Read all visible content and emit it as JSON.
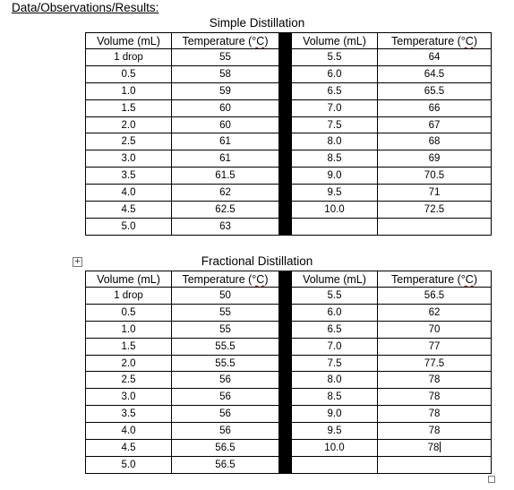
{
  "heading": "Data/Observations/Results:",
  "tables": [
    {
      "caption": "Simple Distillation",
      "header": [
        "Volume (mL)",
        "Temperature (",
        "°C",
        ")",
        "Volume (mL)",
        "Temperature (",
        "°C",
        ")"
      ],
      "rows": [
        [
          "1 drop",
          "55",
          "5.5",
          "64"
        ],
        [
          "0.5",
          "58",
          "6.0",
          "64.5"
        ],
        [
          "1.0",
          "59",
          "6.5",
          "65.5"
        ],
        [
          "1.5",
          "60",
          "7.0",
          "66"
        ],
        [
          "2.0",
          "60",
          "7.5",
          "67"
        ],
        [
          "2.5",
          "61",
          "8.0",
          "68"
        ],
        [
          "3.0",
          "61",
          "8.5",
          "69"
        ],
        [
          "3.5",
          "61.5",
          "9.0",
          "70.5"
        ],
        [
          "4.0",
          "62",
          "9.5",
          "71"
        ],
        [
          "4.5",
          "62.5",
          "10.0",
          "72.5"
        ],
        [
          "5.0",
          "63",
          "",
          ""
        ]
      ]
    },
    {
      "caption": "Fractional Distillation",
      "header": [
        "Volume (mL)",
        "Temperature (",
        "°C",
        ")",
        "Volume (mL)",
        "Temperature (",
        "°C",
        ")"
      ],
      "rows": [
        [
          "1 drop",
          "50",
          "5.5",
          "56.5"
        ],
        [
          "0.5",
          "55",
          "6.0",
          "62"
        ],
        [
          "1.0",
          "55",
          "6.5",
          "70"
        ],
        [
          "1.5",
          "55.5",
          "7.0",
          "77"
        ],
        [
          "2.0",
          "55.5",
          "7.5",
          "77.5"
        ],
        [
          "2.5",
          "56",
          "8.0",
          "78"
        ],
        [
          "3.0",
          "56",
          "8.5",
          "78"
        ],
        [
          "3.5",
          "56",
          "9.0",
          "78"
        ],
        [
          "4.0",
          "56",
          "9.5",
          "78"
        ],
        [
          "4.5",
          "56.5",
          "10.0",
          "78"
        ],
        [
          "5.0",
          "56.5",
          "",
          ""
        ]
      ]
    }
  ],
  "icons": {
    "table_move_handle": "move-cross-icon",
    "table_resize_handle": "resize-square-icon"
  },
  "colors": {
    "separator": "#000000",
    "spellcheck_underline": "#c00000"
  }
}
